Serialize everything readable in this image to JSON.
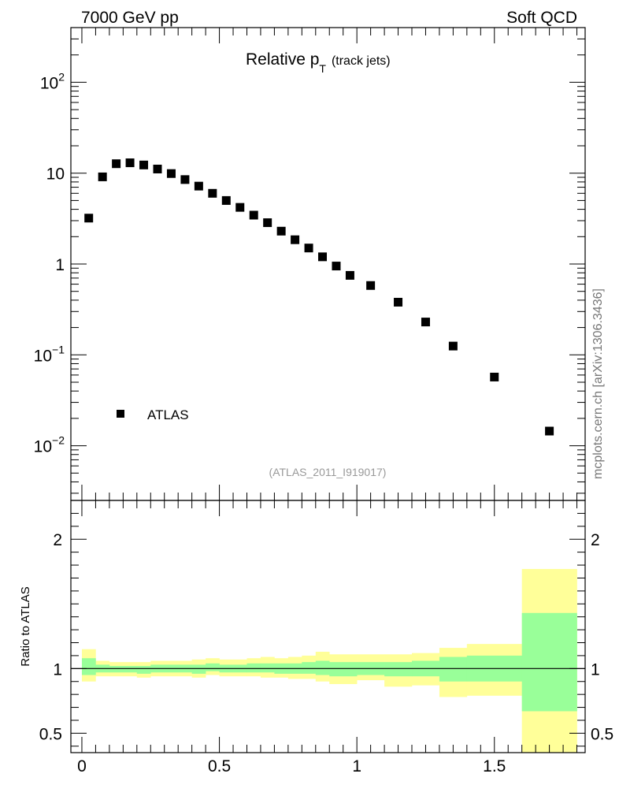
{
  "header": {
    "left": "7000 GeV pp",
    "right": "Soft QCD"
  },
  "plot_title": {
    "main": "Relative p",
    "sub": "T",
    "paren": "(track jets)"
  },
  "side_label": "mcplots.cern.ch [arXiv:1306.3436]",
  "analysis_label": "(ATLAS_2011_I919017)",
  "legend": {
    "label": "ATLAS",
    "placement": "lower-left"
  },
  "ratio_ylabel": "Ratio to ATLAS",
  "colors": {
    "marker": "#000000",
    "band_inner": "#99ff99",
    "band_outer": "#ffff99"
  },
  "chart_data": [
    {
      "type": "scatter",
      "ylog": true,
      "xlim": [
        -0.04,
        1.83
      ],
      "ylim": [
        0.0025,
        400
      ],
      "y_ticks": [
        {
          "value": 0.01,
          "base": "10",
          "exp": "−2"
        },
        {
          "value": 0.1,
          "base": "10",
          "exp": "−1"
        },
        {
          "value": 1,
          "base": "1",
          "exp": ""
        },
        {
          "value": 10,
          "base": "10",
          "exp": ""
        },
        {
          "value": 100,
          "base": "10",
          "exp": "2"
        }
      ],
      "series": [
        {
          "name": "ATLAS",
          "x": [
            0.025,
            0.075,
            0.125,
            0.175,
            0.225,
            0.275,
            0.325,
            0.375,
            0.425,
            0.475,
            0.525,
            0.575,
            0.625,
            0.675,
            0.725,
            0.775,
            0.825,
            0.875,
            0.925,
            0.975,
            1.05,
            1.15,
            1.25,
            1.35,
            1.5,
            1.7
          ],
          "y": [
            3.2,
            9.1,
            12.7,
            13.0,
            12.3,
            11.1,
            9.9,
            8.5,
            7.2,
            6.0,
            5.0,
            4.2,
            3.45,
            2.85,
            2.3,
            1.85,
            1.5,
            1.2,
            0.95,
            0.75,
            0.58,
            0.38,
            0.23,
            0.125,
            0.057,
            0.0145
          ]
        }
      ]
    },
    {
      "type": "area",
      "xlim": [
        -0.04,
        1.83
      ],
      "ylim": [
        0.35,
        2.3
      ],
      "xlabel": "",
      "ylabel": "Ratio to ATLAS",
      "x_ticks": [
        {
          "value": 0,
          "label": "0"
        },
        {
          "value": 0.5,
          "label": "0.5"
        },
        {
          "value": 1,
          "label": "1"
        },
        {
          "value": 1.5,
          "label": "1.5"
        }
      ],
      "y_ticks": [
        {
          "value": 0.5,
          "label": "0.5"
        },
        {
          "value": 1,
          "label": "1"
        },
        {
          "value": 2,
          "label": "2"
        }
      ],
      "reference_line": 1,
      "bin_edges": [
        0.0,
        0.05,
        0.1,
        0.15,
        0.2,
        0.25,
        0.3,
        0.35,
        0.4,
        0.45,
        0.5,
        0.55,
        0.6,
        0.65,
        0.7,
        0.75,
        0.8,
        0.85,
        0.9,
        0.95,
        1.0,
        1.1,
        1.2,
        1.3,
        1.4,
        1.6,
        1.8
      ],
      "series": [
        {
          "band": "outer",
          "low": [
            0.9,
            0.94,
            0.94,
            0.94,
            0.93,
            0.94,
            0.94,
            0.94,
            0.93,
            0.95,
            0.94,
            0.94,
            0.94,
            0.93,
            0.93,
            0.92,
            0.92,
            0.9,
            0.88,
            0.88,
            0.91,
            0.86,
            0.87,
            0.78,
            0.79,
            0.33
          ],
          "high": [
            1.15,
            1.06,
            1.05,
            1.05,
            1.05,
            1.06,
            1.06,
            1.06,
            1.07,
            1.08,
            1.07,
            1.07,
            1.08,
            1.09,
            1.08,
            1.09,
            1.1,
            1.13,
            1.11,
            1.11,
            1.11,
            1.11,
            1.12,
            1.16,
            1.19,
            1.77
          ]
        },
        {
          "band": "inner",
          "low": [
            0.95,
            0.97,
            0.97,
            0.97,
            0.96,
            0.97,
            0.97,
            0.97,
            0.96,
            0.98,
            0.97,
            0.97,
            0.97,
            0.97,
            0.96,
            0.96,
            0.96,
            0.95,
            0.94,
            0.94,
            0.95,
            0.94,
            0.94,
            0.9,
            0.9,
            0.67
          ],
          "high": [
            1.08,
            1.03,
            1.02,
            1.02,
            1.02,
            1.03,
            1.03,
            1.03,
            1.03,
            1.04,
            1.03,
            1.03,
            1.04,
            1.04,
            1.04,
            1.04,
            1.05,
            1.06,
            1.05,
            1.05,
            1.05,
            1.05,
            1.06,
            1.09,
            1.1,
            1.43
          ]
        }
      ]
    }
  ]
}
